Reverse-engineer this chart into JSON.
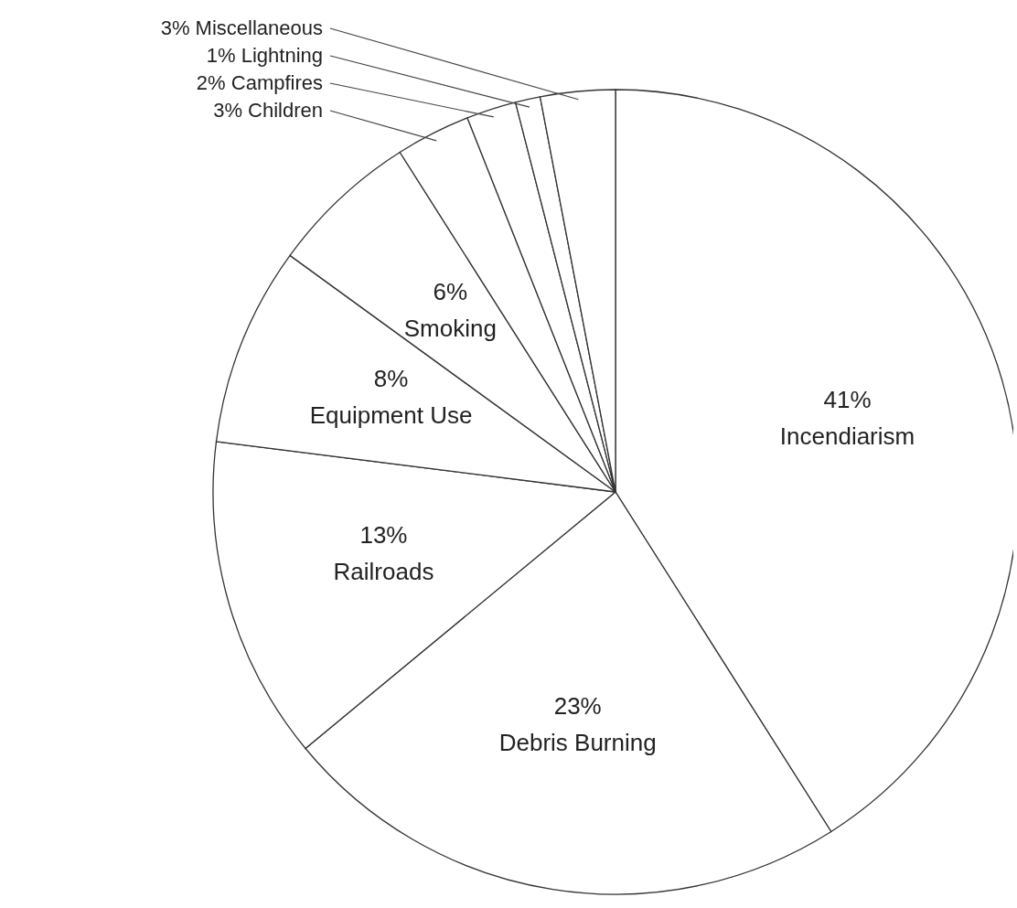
{
  "chart_data": {
    "type": "pie",
    "categories": [
      "Incendiarism",
      "Debris Burning",
      "Railroads",
      "Equipment Use",
      "Smoking",
      "Children",
      "Campfires",
      "Lightning",
      "Miscellaneous"
    ],
    "values": [
      41,
      23,
      13,
      8,
      6,
      3,
      2,
      1,
      3
    ],
    "value_labels": [
      "41%",
      "23%",
      "13%",
      "8%",
      "6%",
      "3%",
      "2%",
      "1%",
      "3%"
    ],
    "colors": [
      "#ffffff",
      "#ffffff",
      "#ffffff",
      "#ffffff",
      "#ffffff",
      "#ffffff",
      "#ffffff",
      "#ffffff",
      "#ffffff"
    ],
    "legend": false
  }
}
